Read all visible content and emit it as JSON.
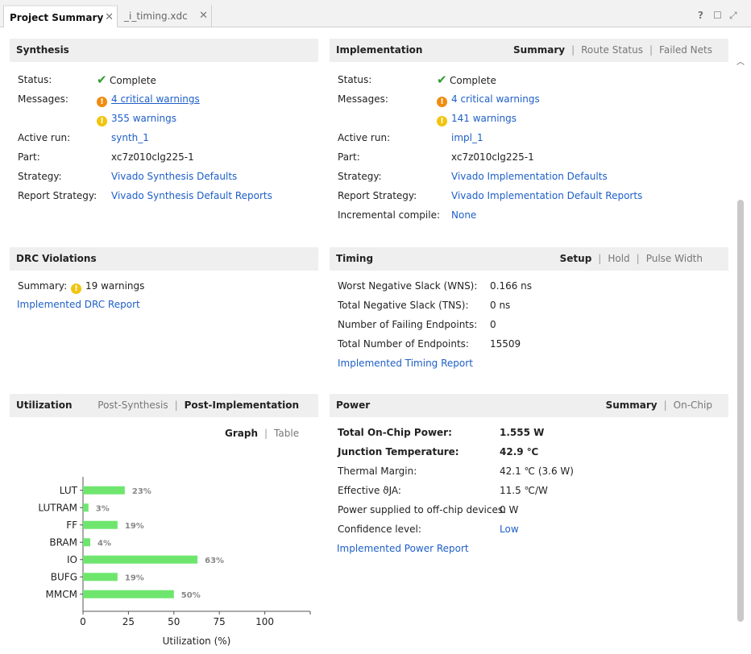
{
  "tabs": [
    {
      "label": "Project Summary",
      "active": true
    },
    {
      "label": "_i_timing.xdc",
      "active": false
    }
  ],
  "window_controls": [
    "?",
    "☐",
    "⤢"
  ],
  "synthesis": {
    "title": "Synthesis",
    "status_label": "Status:",
    "status_value": "Complete",
    "messages_label": "Messages:",
    "critical_warnings": "4 critical warnings",
    "warnings": "355 warnings",
    "active_run_label": "Active run:",
    "active_run": "synth_1",
    "part_label": "Part:",
    "part": "xc7z010clg225-1",
    "strategy_label": "Strategy:",
    "strategy": "Vivado Synthesis Defaults",
    "report_strategy_label": "Report Strategy:",
    "report_strategy": "Vivado Synthesis Default Reports"
  },
  "implementation": {
    "title": "Implementation",
    "links": [
      "Summary",
      "Route Status",
      "Failed Nets"
    ],
    "status_label": "Status:",
    "status_value": "Complete",
    "messages_label": "Messages:",
    "critical_warnings": "4 critical warnings",
    "warnings": "141 warnings",
    "active_run_label": "Active run:",
    "active_run": "impl_1",
    "part_label": "Part:",
    "part": "xc7z010clg225-1",
    "strategy_label": "Strategy:",
    "strategy": "Vivado Implementation Defaults",
    "report_strategy_label": "Report Strategy:",
    "report_strategy": "Vivado Implementation Default Reports",
    "incremental_label": "Incremental compile:",
    "incremental": "None"
  },
  "drc": {
    "title": "DRC Violations",
    "summary_label": "Summary:",
    "summary_value": "19 warnings",
    "report_link": "Implemented DRC Report"
  },
  "timing": {
    "title": "Timing",
    "links": [
      "Setup",
      "Hold",
      "Pulse Width"
    ],
    "wns_label": "Worst Negative Slack (WNS):",
    "wns": "0.166 ns",
    "tns_label": "Total Negative Slack (TNS):",
    "tns": "0 ns",
    "failing_label": "Number of Failing Endpoints:",
    "failing": "0",
    "total_label": "Total Number of Endpoints:",
    "total": "15509",
    "report_link": "Implemented Timing Report"
  },
  "utilization": {
    "title": "Utilization",
    "links": [
      "Post-Synthesis",
      "Post-Implementation"
    ],
    "view_links": [
      "Graph",
      "Table"
    ]
  },
  "power": {
    "title": "Power",
    "links": [
      "Summary",
      "On-Chip"
    ],
    "total_label": "Total On-Chip Power:",
    "total": "1.555 W",
    "junction_label": "Junction Temperature:",
    "junction": "42.9 ℃",
    "margin_label": "Thermal Margin:",
    "margin": "42.1 ℃ (3.6 W)",
    "theta_label": "Effective ϑJA:",
    "theta": "11.5 ℃/W",
    "offchip_label": "Power supplied to off-chip devices:",
    "offchip": "0 W",
    "confidence_label": "Confidence level:",
    "confidence": "Low",
    "report_link": "Implemented Power Report"
  },
  "chart_data": {
    "type": "bar",
    "orientation": "horizontal",
    "categories": [
      "LUT",
      "LUTRAM",
      "FF",
      "BRAM",
      "IO",
      "BUFG",
      "MMCM"
    ],
    "values": [
      23,
      3,
      19,
      4,
      63,
      19,
      50
    ],
    "value_labels": [
      "23%",
      "3%",
      "19%",
      "4%",
      "63%",
      "19%",
      "50%"
    ],
    "xticks": [
      "0",
      "25",
      "50",
      "75",
      "100"
    ],
    "xlim": [
      0,
      125
    ],
    "xlabel": "Utilization (%)",
    "bar_color": "#6ee66e"
  },
  "colors": {
    "link": "#1e5fc8",
    "success": "#2e9d2e",
    "critical": "#f08c0f",
    "warning": "#f1c40f"
  }
}
